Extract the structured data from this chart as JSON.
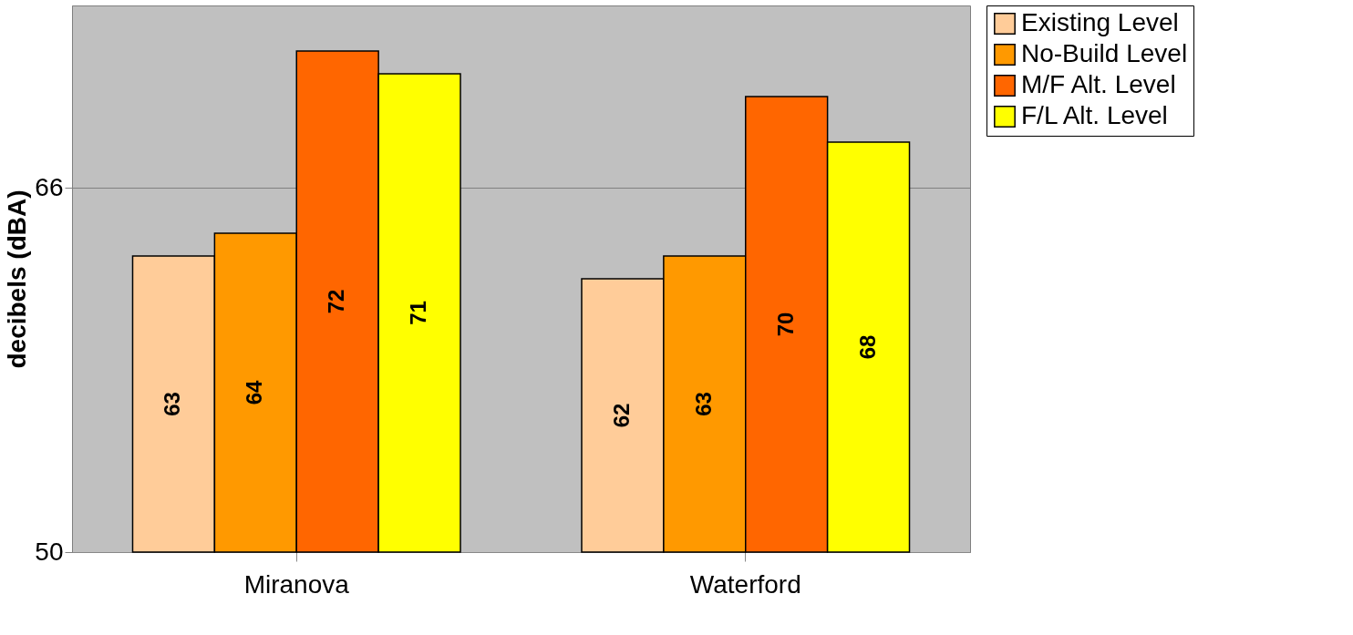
{
  "chart_data": {
    "type": "bar",
    "ylabel": "decibels (dBA)",
    "categories": [
      "Miranova",
      "Waterford"
    ],
    "series": [
      {
        "name": "Existing Level",
        "color": "#ffcc99",
        "values": [
          63,
          62
        ]
      },
      {
        "name": "No-Build Level",
        "color": "#ff9900",
        "values": [
          64,
          63
        ]
      },
      {
        "name": "M/F Alt. Level",
        "color": "#ff6600",
        "values": [
          72,
          70
        ]
      },
      {
        "name": "F/L Alt. Level",
        "color": "#ffff00",
        "values": [
          71,
          68
        ]
      }
    ],
    "ylim": [
      50,
      74
    ],
    "yticks": [
      50,
      66
    ],
    "grid": "y",
    "legend": "right",
    "data_labels": true
  }
}
